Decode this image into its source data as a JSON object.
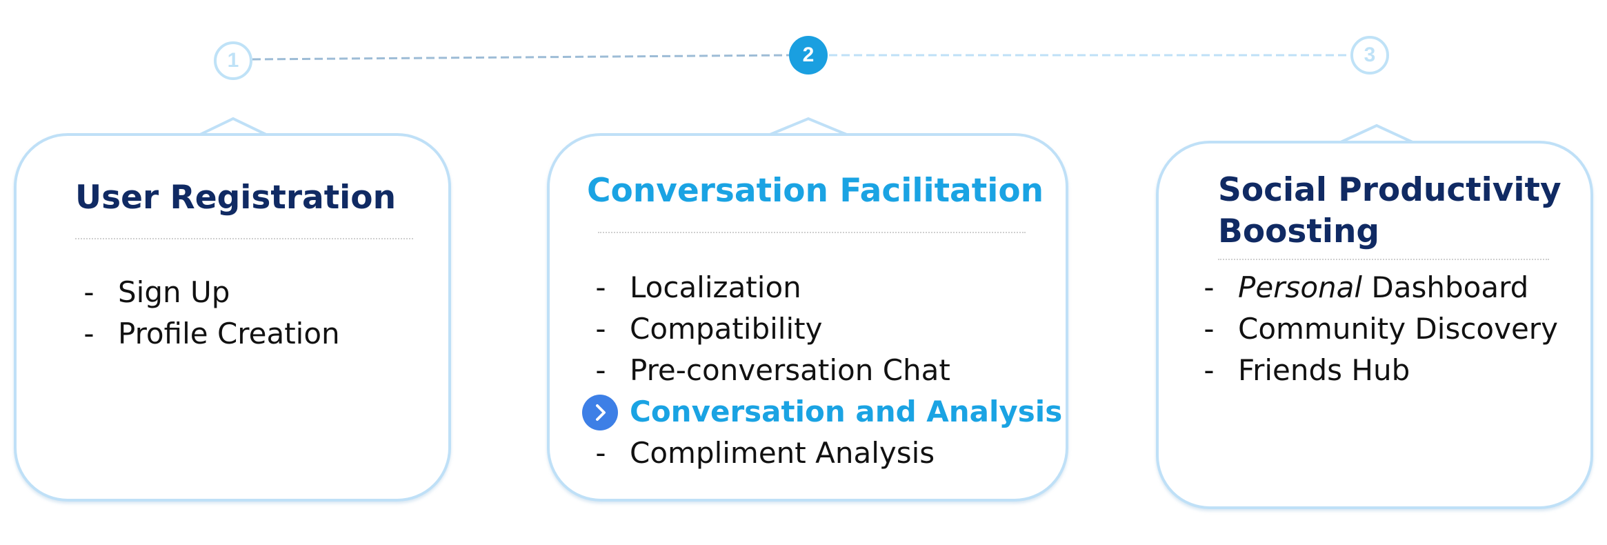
{
  "colors": {
    "inactive_step": "#bfe2f7",
    "active_step": "#1a9fe0",
    "card_border": "#bfe0f7",
    "title_dark": "#102a63",
    "title_active": "#1aa3e3",
    "current_item": "#1aa3e3",
    "current_bullet": "#3d7fe6",
    "body_text": "#111111"
  },
  "steps": [
    {
      "number": "1",
      "state": "inactive"
    },
    {
      "number": "2",
      "state": "active"
    },
    {
      "number": "3",
      "state": "inactive"
    }
  ],
  "cards": [
    {
      "title": "User Registration",
      "items": [
        {
          "bullet": "-",
          "label": "Sign Up"
        },
        {
          "bullet": "-",
          "label": "Profile Creation"
        }
      ]
    },
    {
      "title": "Conversation Facilitation",
      "items": [
        {
          "bullet": "-",
          "label": "Localization"
        },
        {
          "bullet": "-",
          "label": "Compatibility"
        },
        {
          "bullet": "-",
          "label": "Pre-conversation Chat"
        },
        {
          "bullet": "chevron-right-icon",
          "label": "Conversation and Analysis",
          "current": true
        },
        {
          "bullet": "-",
          "label": "Compliment Analysis"
        }
      ]
    },
    {
      "title_line1": "Social Productivity",
      "title_line2": "Boosting",
      "items": [
        {
          "bullet": "-",
          "label_italic": "Personal",
          "label_rest": " Dashboard"
        },
        {
          "bullet": "-",
          "label": "Community Discovery"
        },
        {
          "bullet": "-",
          "label": "Friends Hub"
        }
      ]
    }
  ]
}
